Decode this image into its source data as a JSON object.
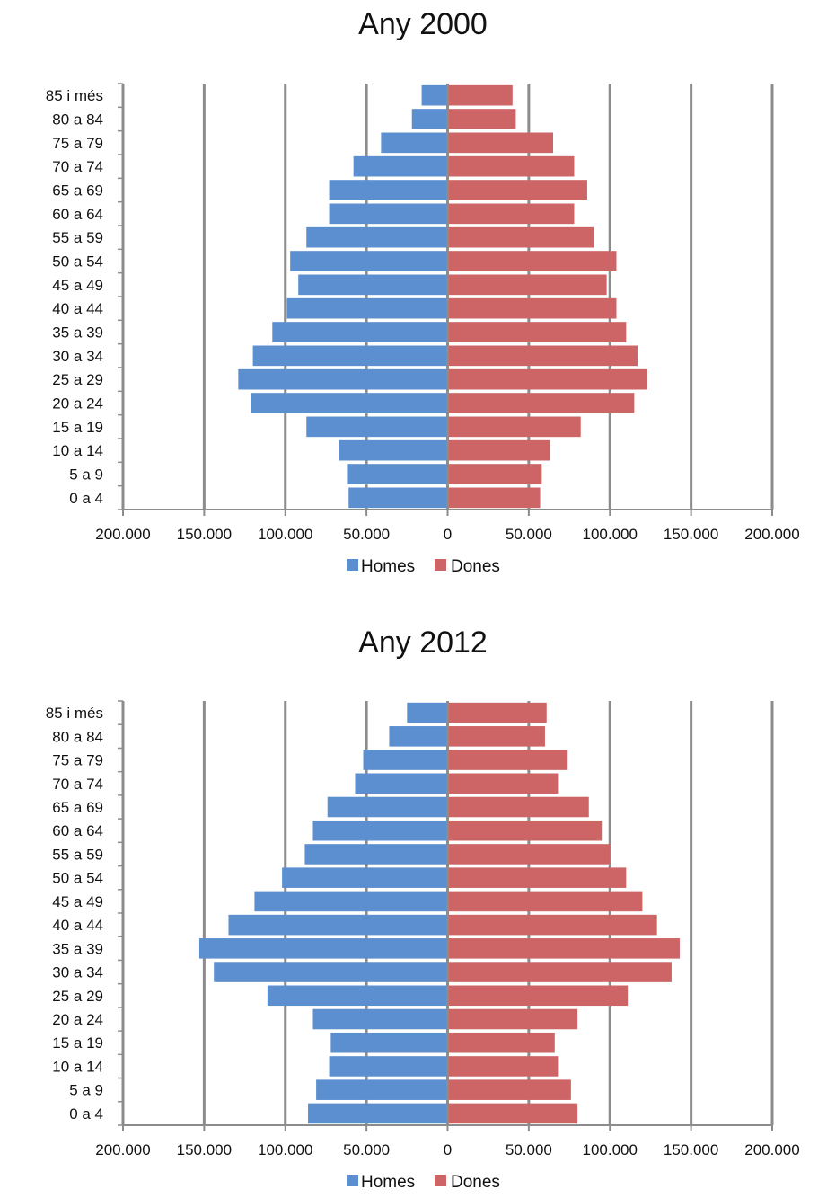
{
  "colors": {
    "men": "#5b8fd0",
    "women": "#cd6465",
    "grid": "#8c8c8c",
    "axis": "#8c8c8c"
  },
  "chart_data": [
    {
      "type": "bar",
      "orientation": "horizontal",
      "layout": "population-pyramid",
      "title": "Any 2000",
      "categories": [
        "0 a 4",
        "5 a 9",
        "10 a 14",
        "15 a 19",
        "20 a 24",
        "25 a 29",
        "30 a 34",
        "35 a 39",
        "40 a 44",
        "45 a 49",
        "50 a 54",
        "55 a 59",
        "60 a 64",
        "65 a 69",
        "70 a 74",
        "75 a 79",
        "80 a 84",
        "85 i més"
      ],
      "series": [
        {
          "name": "Homes",
          "values": [
            61000,
            62000,
            67000,
            87000,
            121000,
            129000,
            120000,
            108000,
            99000,
            92000,
            97000,
            87000,
            73000,
            73000,
            58000,
            41000,
            22000,
            16000
          ]
        },
        {
          "name": "Dones",
          "values": [
            57000,
            58000,
            63000,
            82000,
            115000,
            123000,
            117000,
            110000,
            104000,
            98000,
            104000,
            90000,
            78000,
            86000,
            78000,
            65000,
            42000,
            40000
          ]
        }
      ],
      "xlim": [
        -200000,
        200000
      ],
      "xticks": [
        "200.000",
        "150.000",
        "100.000",
        "50.000",
        "0",
        "50.000",
        "100.000",
        "150.000",
        "200.000"
      ],
      "grid": true,
      "legend_position": "bottom"
    },
    {
      "type": "bar",
      "orientation": "horizontal",
      "layout": "population-pyramid",
      "title": "Any 2012",
      "categories": [
        "0 a 4",
        "5 a 9",
        "10 a 14",
        "15 a 19",
        "20 a 24",
        "25 a 29",
        "30 a 34",
        "35 a 39",
        "40 a 44",
        "45 a 49",
        "50 a 54",
        "55 a 59",
        "60 a 64",
        "65 a 69",
        "70 a 74",
        "75 a 79",
        "80 a 84",
        "85 i més"
      ],
      "series": [
        {
          "name": "Homes",
          "values": [
            86000,
            81000,
            73000,
            72000,
            83000,
            111000,
            144000,
            153000,
            135000,
            119000,
            102000,
            88000,
            83000,
            74000,
            57000,
            52000,
            36000,
            25000
          ]
        },
        {
          "name": "Dones",
          "values": [
            80000,
            76000,
            68000,
            66000,
            80000,
            111000,
            138000,
            143000,
            129000,
            120000,
            110000,
            100000,
            95000,
            87000,
            68000,
            74000,
            60000,
            61000
          ]
        }
      ],
      "xlim": [
        -200000,
        200000
      ],
      "xticks": [
        "200.000",
        "150.000",
        "100.000",
        "50.000",
        "0",
        "50.000",
        "100.000",
        "150.000",
        "200.000"
      ],
      "grid": true,
      "legend_position": "bottom"
    }
  ]
}
